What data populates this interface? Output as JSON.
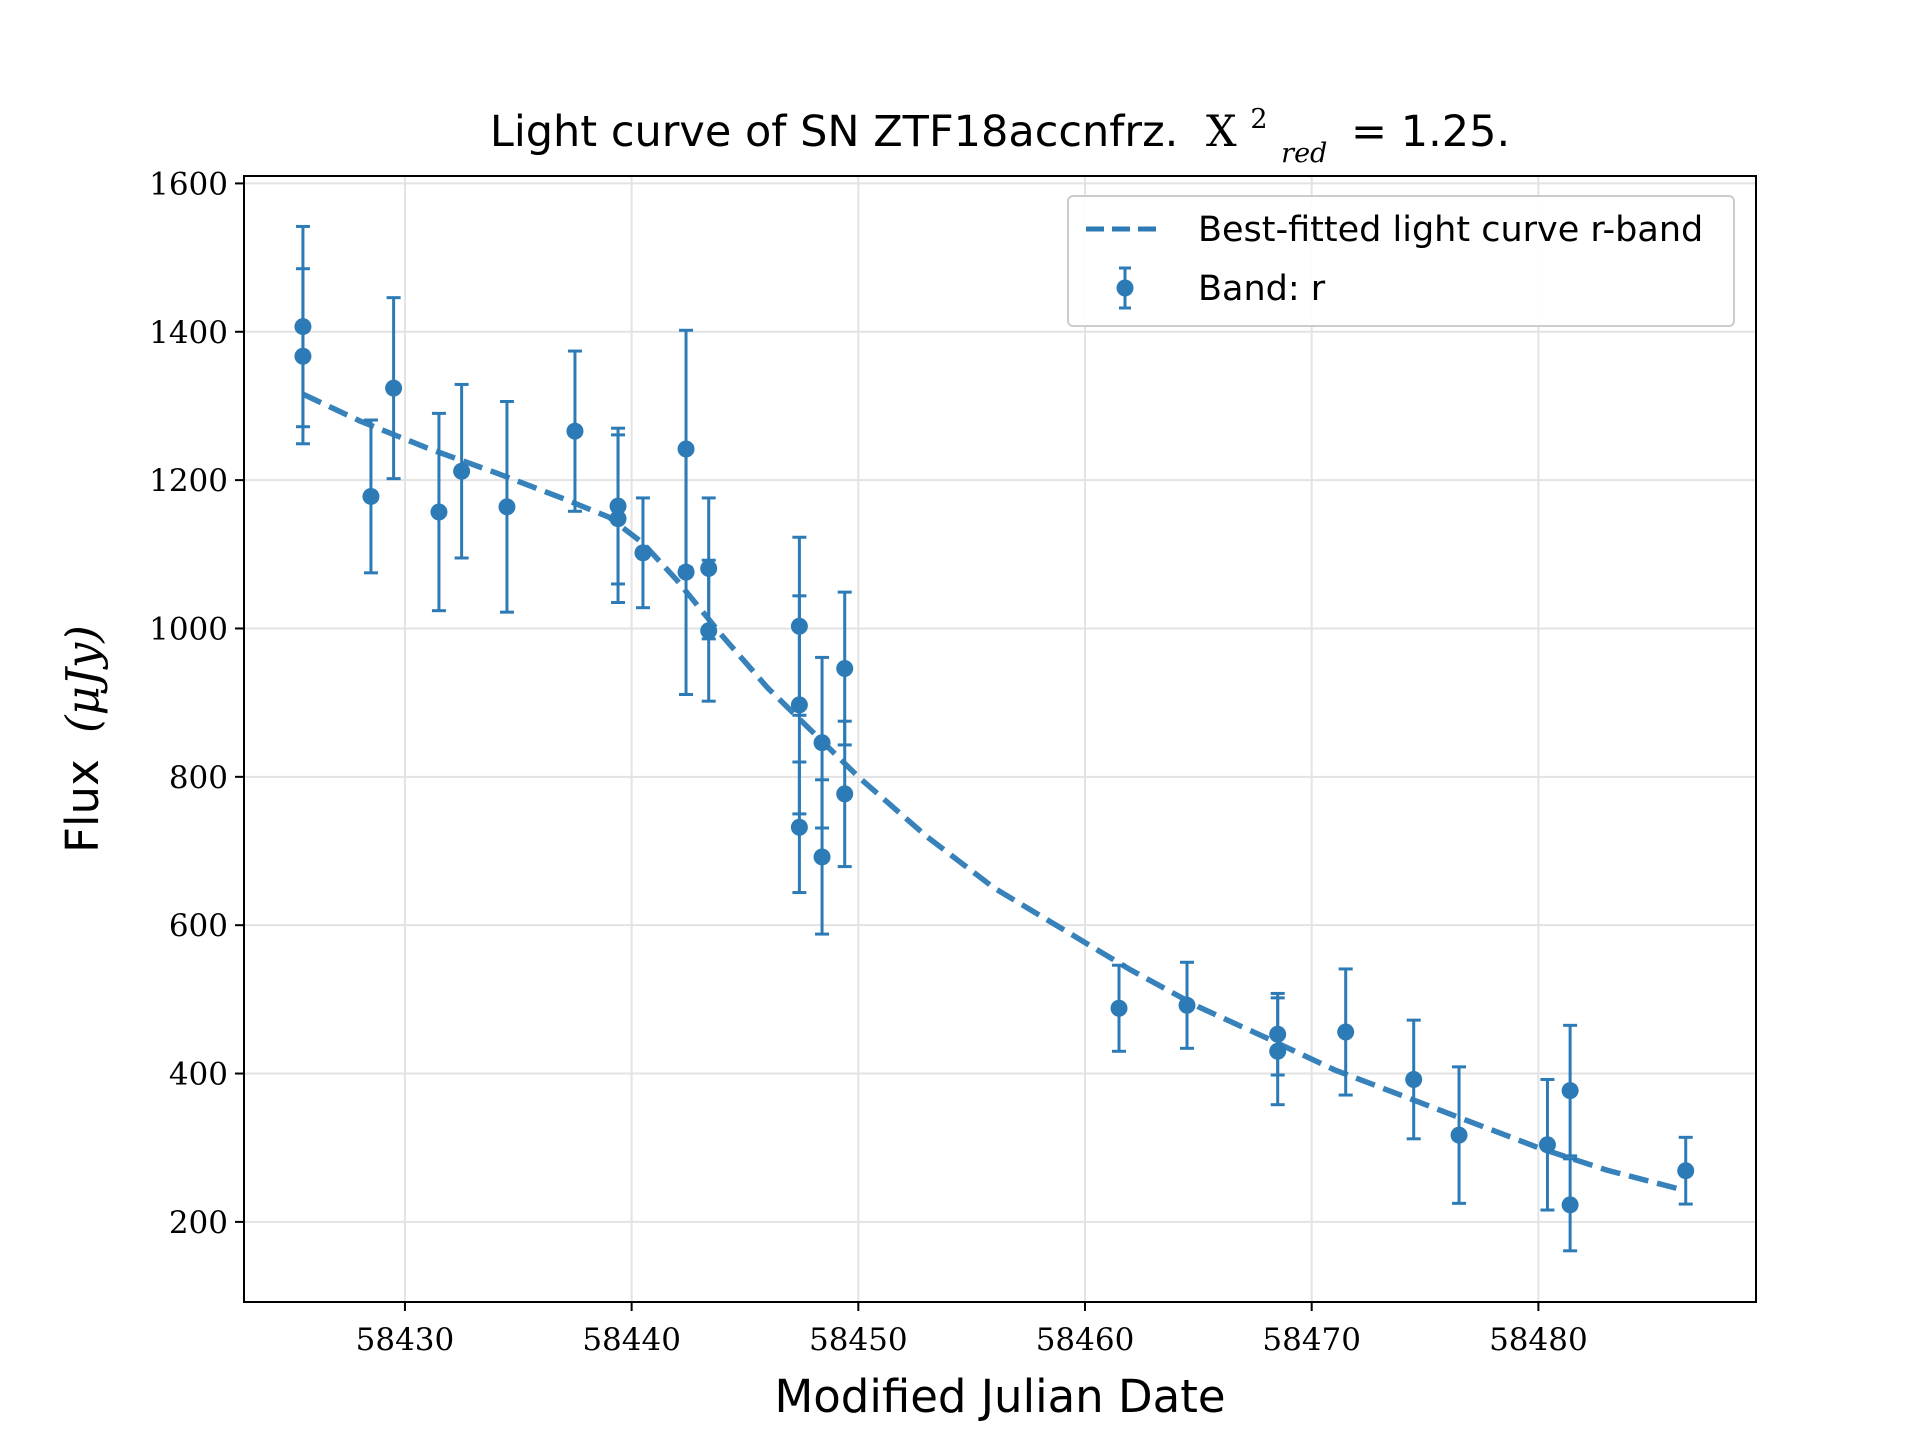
{
  "chart_data": {
    "type": "scatter",
    "title": {
      "main": "Light curve of SN ZTF18accnfrz.",
      "stat_symbol": "X",
      "stat_sup": "2",
      "stat_sub": "red",
      "stat_value": "= 1.25."
    },
    "xlabel": "Modified Julian Date",
    "ylabel": {
      "text": "Flux",
      "unit": "(μJy)"
    },
    "xlim": [
      58422.9,
      58489.6
    ],
    "ylim": [
      92,
      1610
    ],
    "xticks": [
      58430,
      58440,
      58450,
      58460,
      58470,
      58480
    ],
    "yticks": [
      200,
      400,
      600,
      800,
      1000,
      1200,
      1400,
      1600
    ],
    "grid": true,
    "legend_position": "top-right",
    "color": "#2c7bb6",
    "series": [
      {
        "name": "Band: r",
        "kind": "errorbar",
        "points": [
          {
            "x": 58425.5,
            "y": 1407,
            "err": 135
          },
          {
            "x": 58425.5,
            "y": 1367,
            "err": 118
          },
          {
            "x": 58428.5,
            "y": 1178,
            "err": 103
          },
          {
            "x": 58429.5,
            "y": 1324,
            "err": 122
          },
          {
            "x": 58431.5,
            "y": 1157,
            "err": 133
          },
          {
            "x": 58432.5,
            "y": 1212,
            "err": 117
          },
          {
            "x": 58434.5,
            "y": 1164,
            "err": 142
          },
          {
            "x": 58437.5,
            "y": 1266,
            "err": 108
          },
          {
            "x": 58439.4,
            "y": 1165,
            "err": 105
          },
          {
            "x": 58439.4,
            "y": 1148,
            "err": 113
          },
          {
            "x": 58440.5,
            "y": 1102,
            "err": 74
          },
          {
            "x": 58442.4,
            "y": 1242,
            "err": 160
          },
          {
            "x": 58442.4,
            "y": 1076,
            "err": 165
          },
          {
            "x": 58443.4,
            "y": 1081,
            "err": 95
          },
          {
            "x": 58443.4,
            "y": 997,
            "err": 95
          },
          {
            "x": 58447.4,
            "y": 1003,
            "err": 120
          },
          {
            "x": 58447.4,
            "y": 897,
            "err": 147
          },
          {
            "x": 58447.4,
            "y": 732,
            "err": 88
          },
          {
            "x": 58448.4,
            "y": 846,
            "err": 115
          },
          {
            "x": 58448.4,
            "y": 692,
            "err": 104
          },
          {
            "x": 58449.4,
            "y": 946,
            "err": 103
          },
          {
            "x": 58449.4,
            "y": 777,
            "err": 98
          },
          {
            "x": 58461.5,
            "y": 488,
            "err": 58
          },
          {
            "x": 58464.5,
            "y": 492,
            "err": 58
          },
          {
            "x": 58468.5,
            "y": 453,
            "err": 55
          },
          {
            "x": 58468.5,
            "y": 430,
            "err": 72
          },
          {
            "x": 58471.5,
            "y": 456,
            "err": 85
          },
          {
            "x": 58474.5,
            "y": 392,
            "err": 80
          },
          {
            "x": 58476.5,
            "y": 317,
            "err": 92
          },
          {
            "x": 58480.4,
            "y": 304,
            "err": 88
          },
          {
            "x": 58481.4,
            "y": 377,
            "err": 88
          },
          {
            "x": 58481.4,
            "y": 223,
            "err": 62
          },
          {
            "x": 58486.5,
            "y": 269,
            "err": 45
          }
        ]
      },
      {
        "name": "Best-fitted light curve r-band",
        "kind": "dashed-line",
        "x": [
          58425.5,
          58428,
          58431,
          58434,
          58437,
          58439,
          58440.5,
          58442,
          58444,
          58446,
          58448,
          58450,
          58453,
          58456,
          58459,
          58462,
          58465,
          58468,
          58471,
          58474,
          58477,
          58480,
          58483,
          58486.5
        ],
        "y": [
          1316,
          1280,
          1243,
          1210,
          1175,
          1150,
          1115,
          1065,
          990,
          920,
          860,
          800,
          720,
          650,
          595,
          540,
          490,
          448,
          405,
          370,
          335,
          300,
          270,
          242
        ]
      }
    ]
  }
}
